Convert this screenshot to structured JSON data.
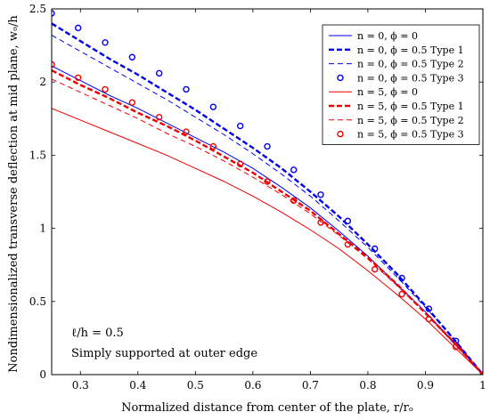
{
  "chart_data": {
    "type": "line",
    "xlabel": "Normalized distance from center of the plate, r/rₒ",
    "ylabel": "Nondimensionalized transverse deflection at mid plane, wₒ/h",
    "xlim": [
      0.25,
      1.0
    ],
    "ylim": [
      0,
      2.5
    ],
    "xticks": [
      "0.3",
      "0.4",
      "0.5",
      "0.6",
      "0.7",
      "0.8",
      "0.9",
      "1"
    ],
    "yticks": [
      "0",
      "0.5",
      "1",
      "1.5",
      "2",
      "2.5"
    ],
    "grid": false,
    "legend_position": "top-right",
    "annotations": [
      "ℓ/h = 0.5",
      "Simply supported at outer edge"
    ],
    "series": [
      {
        "name": "n = 0, ϕ = 0",
        "color": "#0000ee",
        "style": "solid",
        "marker": "none",
        "x": [
          0.25,
          0.3,
          0.35,
          0.4,
          0.45,
          0.5,
          0.55,
          0.6,
          0.65,
          0.7,
          0.75,
          0.8,
          0.85,
          0.9,
          0.95,
          1.0
        ],
        "y": [
          2.11,
          2.01,
          1.91,
          1.82,
          1.72,
          1.62,
          1.52,
          1.41,
          1.28,
          1.14,
          0.98,
          0.81,
          0.62,
          0.43,
          0.22,
          0.0
        ]
      },
      {
        "name": "n = 0, ϕ = 0.5 Type 1",
        "color": "#0000ee",
        "style": "bold-dashed",
        "marker": "none",
        "x": [
          0.25,
          0.3,
          0.35,
          0.4,
          0.45,
          0.5,
          0.55,
          0.6,
          0.65,
          0.7,
          0.75,
          0.8,
          0.85,
          0.9,
          0.95,
          1.0
        ],
        "y": [
          2.4,
          2.28,
          2.16,
          2.05,
          1.93,
          1.81,
          1.68,
          1.55,
          1.41,
          1.25,
          1.08,
          0.89,
          0.69,
          0.47,
          0.24,
          0.0
        ]
      },
      {
        "name": "n = 0, ϕ = 0.5 Type 2",
        "color": "#0000ee",
        "style": "thin-dashed",
        "marker": "none",
        "x": [
          0.25,
          0.3,
          0.35,
          0.4,
          0.45,
          0.5,
          0.55,
          0.6,
          0.65,
          0.7,
          0.75,
          0.8,
          0.85,
          0.9,
          0.95,
          1.0
        ],
        "y": [
          2.32,
          2.21,
          2.1,
          1.99,
          1.88,
          1.76,
          1.64,
          1.51,
          1.37,
          1.22,
          1.05,
          0.87,
          0.67,
          0.46,
          0.24,
          0.0
        ]
      },
      {
        "name": "n = 0, ϕ = 0.5 Type 3",
        "color": "#0000ee",
        "style": "none",
        "marker": "circle",
        "x": [
          0.25,
          0.296,
          0.343,
          0.39,
          0.437,
          0.484,
          0.531,
          0.578,
          0.625,
          0.671,
          0.718,
          0.765,
          0.812,
          0.859,
          0.906,
          0.953,
          1.0
        ],
        "y": [
          2.47,
          2.37,
          2.27,
          2.17,
          2.06,
          1.95,
          1.83,
          1.7,
          1.56,
          1.4,
          1.23,
          1.05,
          0.86,
          0.66,
          0.45,
          0.23,
          0.0
        ]
      },
      {
        "name": "n = 5, ϕ = 0",
        "color": "#ee0000",
        "style": "solid",
        "marker": "none",
        "x": [
          0.25,
          0.3,
          0.35,
          0.4,
          0.45,
          0.5,
          0.55,
          0.6,
          0.65,
          0.7,
          0.75,
          0.8,
          0.85,
          0.9,
          0.95,
          1.0
        ],
        "y": [
          1.82,
          1.74,
          1.66,
          1.58,
          1.5,
          1.41,
          1.32,
          1.22,
          1.11,
          0.99,
          0.86,
          0.71,
          0.55,
          0.38,
          0.19,
          0.0
        ]
      },
      {
        "name": "n = 5, ϕ = 0.5 Type 1",
        "color": "#ee0000",
        "style": "bold-dashed",
        "marker": "none",
        "x": [
          0.25,
          0.3,
          0.35,
          0.4,
          0.45,
          0.5,
          0.55,
          0.6,
          0.65,
          0.7,
          0.75,
          0.8,
          0.85,
          0.9,
          0.95,
          1.0
        ],
        "y": [
          2.08,
          1.98,
          1.89,
          1.79,
          1.7,
          1.6,
          1.49,
          1.38,
          1.25,
          1.12,
          0.96,
          0.8,
          0.62,
          0.42,
          0.22,
          0.0
        ]
      },
      {
        "name": "n = 5, ϕ = 0.5 Type 2",
        "color": "#ee0000",
        "style": "thin-dashed",
        "marker": "none",
        "x": [
          0.25,
          0.3,
          0.35,
          0.4,
          0.45,
          0.5,
          0.55,
          0.6,
          0.65,
          0.7,
          0.75,
          0.8,
          0.85,
          0.9,
          0.95,
          1.0
        ],
        "y": [
          2.02,
          1.93,
          1.84,
          1.75,
          1.65,
          1.56,
          1.46,
          1.35,
          1.23,
          1.1,
          0.95,
          0.79,
          0.61,
          0.42,
          0.21,
          0.0
        ]
      },
      {
        "name": "n = 5, ϕ = 0.5 Type 3",
        "color": "#ee0000",
        "style": "none",
        "marker": "circle",
        "x": [
          0.25,
          0.296,
          0.343,
          0.39,
          0.437,
          0.484,
          0.531,
          0.578,
          0.625,
          0.671,
          0.718,
          0.765,
          0.812,
          0.859,
          0.906,
          0.953,
          1.0
        ],
        "y": [
          2.12,
          2.03,
          1.95,
          1.86,
          1.76,
          1.66,
          1.56,
          1.44,
          1.32,
          1.19,
          1.04,
          0.89,
          0.72,
          0.55,
          0.38,
          0.19,
          0.0
        ]
      }
    ]
  }
}
